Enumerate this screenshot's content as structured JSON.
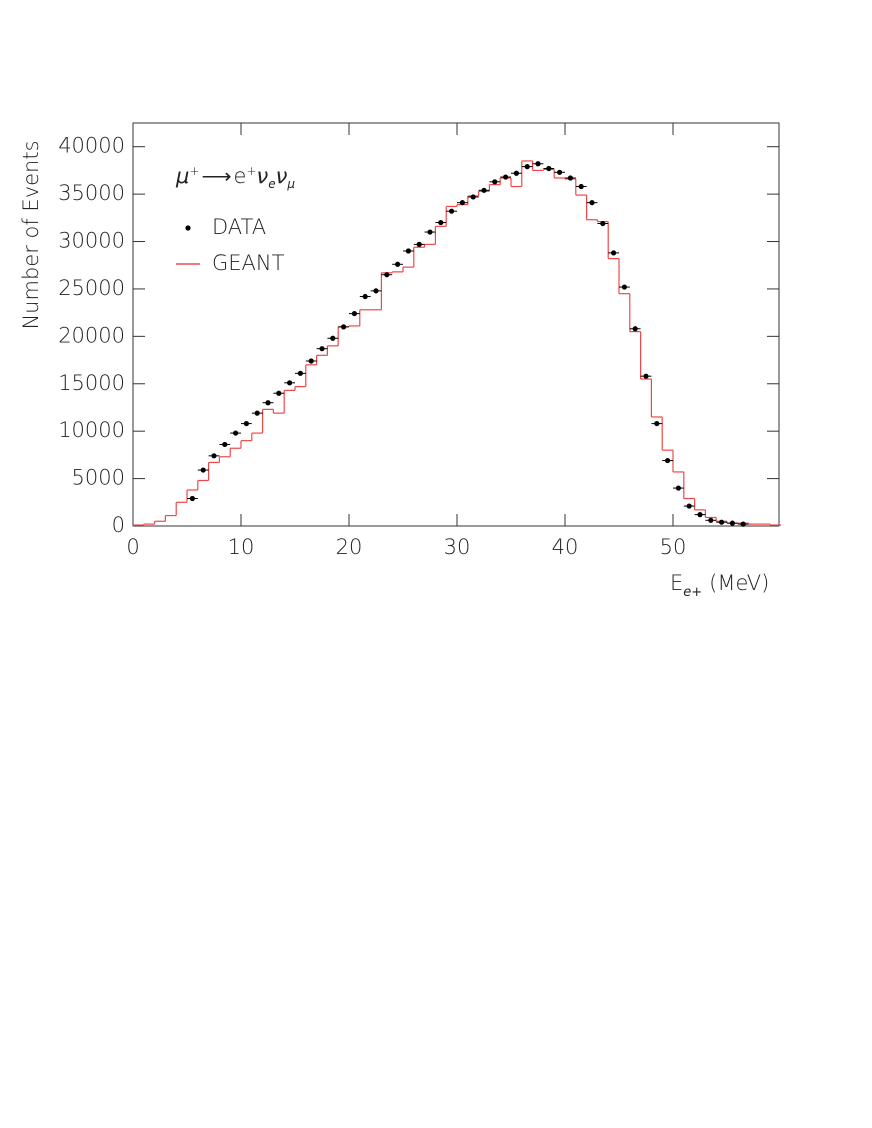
{
  "chart_data": {
    "type": "histogram",
    "y_label": "Number of Events",
    "x_label": {
      "main": "E",
      "sub": "e+",
      "unit": "(MeV)"
    },
    "annotation": [
      "μ",
      "+",
      "⟶",
      "e",
      "+",
      "ν",
      "e",
      "ν",
      "μ"
    ],
    "xlim": [
      0,
      60
    ],
    "xticks": [
      0,
      10,
      20,
      30,
      40,
      50
    ],
    "ylim": [
      0,
      42500
    ],
    "yticks": [
      0,
      5000,
      10000,
      15000,
      20000,
      25000,
      30000,
      35000,
      40000
    ],
    "series": [
      {
        "name": "DATA",
        "type": "scatter",
        "color": "#000000",
        "x": [
          5.5,
          6.5,
          7.5,
          8.5,
          9.5,
          10.5,
          11.5,
          12.5,
          13.5,
          14.5,
          15.5,
          16.5,
          17.5,
          18.5,
          19.5,
          20.5,
          21.5,
          22.5,
          23.5,
          24.5,
          25.5,
          26.5,
          27.5,
          28.5,
          29.5,
          30.5,
          31.5,
          32.5,
          33.5,
          34.5,
          35.5,
          36.5,
          37.5,
          38.5,
          39.5,
          40.5,
          41.5,
          42.5,
          43.5,
          44.5,
          45.5,
          46.5,
          47.5,
          48.5,
          49.5,
          50.5,
          51.5,
          52.5,
          53.5,
          54.5,
          55.5,
          56.5
        ],
        "values": [
          2900,
          5900,
          7400,
          8600,
          9800,
          10800,
          11900,
          13000,
          14000,
          15100,
          16100,
          17400,
          18700,
          19800,
          21000,
          22400,
          24200,
          24800,
          26500,
          27600,
          29000,
          29700,
          31000,
          32000,
          33200,
          34100,
          34700,
          35400,
          36300,
          36800,
          37200,
          37900,
          38200,
          37700,
          37300,
          36700,
          35800,
          34100,
          31900,
          28800,
          25200,
          20800,
          15800,
          10800,
          6900,
          4000,
          2100,
          1200,
          600,
          400,
          300,
          200
        ]
      },
      {
        "name": "GEANT",
        "type": "histogram",
        "color": "#f04848",
        "bins": [
          0,
          1,
          2,
          3,
          4,
          5,
          6,
          7,
          8,
          9,
          10,
          11,
          12,
          13,
          14,
          15,
          16,
          17,
          18,
          19,
          20,
          21,
          22,
          23,
          24,
          25,
          26,
          27,
          28,
          29,
          30,
          31,
          32,
          33,
          34,
          35,
          36,
          37,
          38,
          39,
          40,
          41,
          42,
          43,
          44,
          45,
          46,
          47,
          48,
          49,
          50,
          51,
          52,
          53,
          54,
          55,
          56,
          57,
          58,
          59,
          60
        ],
        "values": [
          100,
          200,
          500,
          1100,
          2500,
          3800,
          4800,
          6700,
          7300,
          8200,
          9000,
          9800,
          12300,
          11900,
          14300,
          14700,
          17000,
          18000,
          19000,
          21000,
          21100,
          22800,
          22800,
          26700,
          26800,
          27300,
          29400,
          29700,
          31600,
          33700,
          33900,
          34800,
          35300,
          36000,
          36700,
          35800,
          38500,
          37500,
          37600,
          36700,
          36600,
          34900,
          32300,
          32100,
          28200,
          24500,
          20500,
          15500,
          11500,
          8000,
          5700,
          2900,
          1700,
          900,
          500,
          300,
          300,
          200,
          200,
          100
        ]
      }
    ]
  }
}
